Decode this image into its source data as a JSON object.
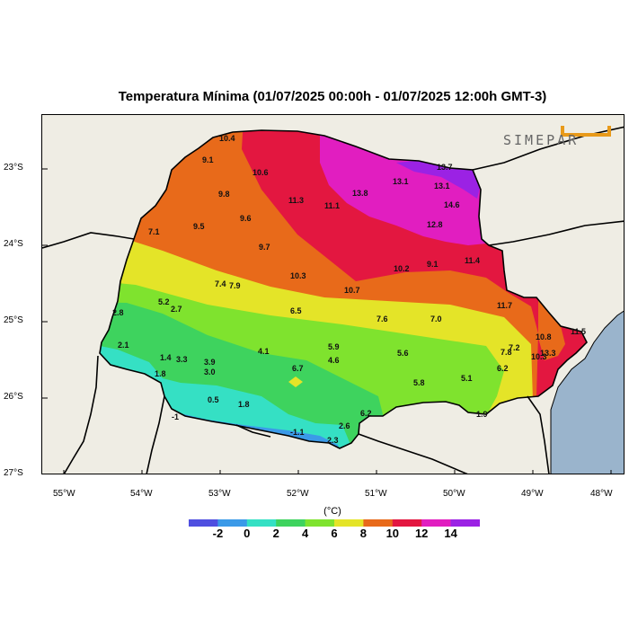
{
  "title": "Temperatura Mínima (01/07/2025 00:00h - 01/07/2025 12:00h GMT-3)",
  "logo_text": "SIMEPAR",
  "lat_ticks": [
    "23°S",
    "24°S",
    "25°S",
    "26°S",
    "27°S"
  ],
  "lon_ticks": [
    "55°W",
    "54°W",
    "53°W",
    "52°W",
    "51°W",
    "50°W",
    "49°W",
    "48°W"
  ],
  "colorbar": {
    "title": "(°C)",
    "labels": [
      "-2",
      "0",
      "2",
      "4",
      "6",
      "8",
      "10",
      "12",
      "14"
    ],
    "colors": [
      "#4f4fe0",
      "#3b9ae8",
      "#35e0c4",
      "#3ed35e",
      "#7fe32e",
      "#e4e428",
      "#e86a1a",
      "#e31740",
      "#e11ec0",
      "#9b22e4"
    ]
  },
  "colors": {
    "outside_land": "#efede4",
    "ocean": "#9ab4cc"
  },
  "station_values": [
    "10.4",
    "9.1",
    "10.6",
    "13.7",
    "13.1",
    "13.1",
    "9.8",
    "11.3",
    "13.8",
    "11.1",
    "14.6",
    "9.6",
    "9.5",
    "12.8",
    "7.1",
    "9.7",
    "11.4",
    "10.2",
    "9.1",
    "10.3",
    "7.4",
    "7.9",
    "10.7",
    "5.2",
    "2.7",
    "11.7",
    "2.8",
    "6.5",
    "7.6",
    "7.0",
    "10.8",
    "11.5",
    "2.1",
    "5.9",
    "4.1",
    "7.2",
    "7.8",
    "1.4",
    "3.3",
    "3.9",
    "4.6",
    "5.6",
    "10.3",
    "13.3",
    "1.8",
    "3.0",
    "6.7",
    "6.2",
    "5.1",
    "5.8",
    "0.5",
    "1.8",
    "6.2",
    "1.9",
    "2.6",
    "-1.1",
    "2.3",
    "-1"
  ]
}
